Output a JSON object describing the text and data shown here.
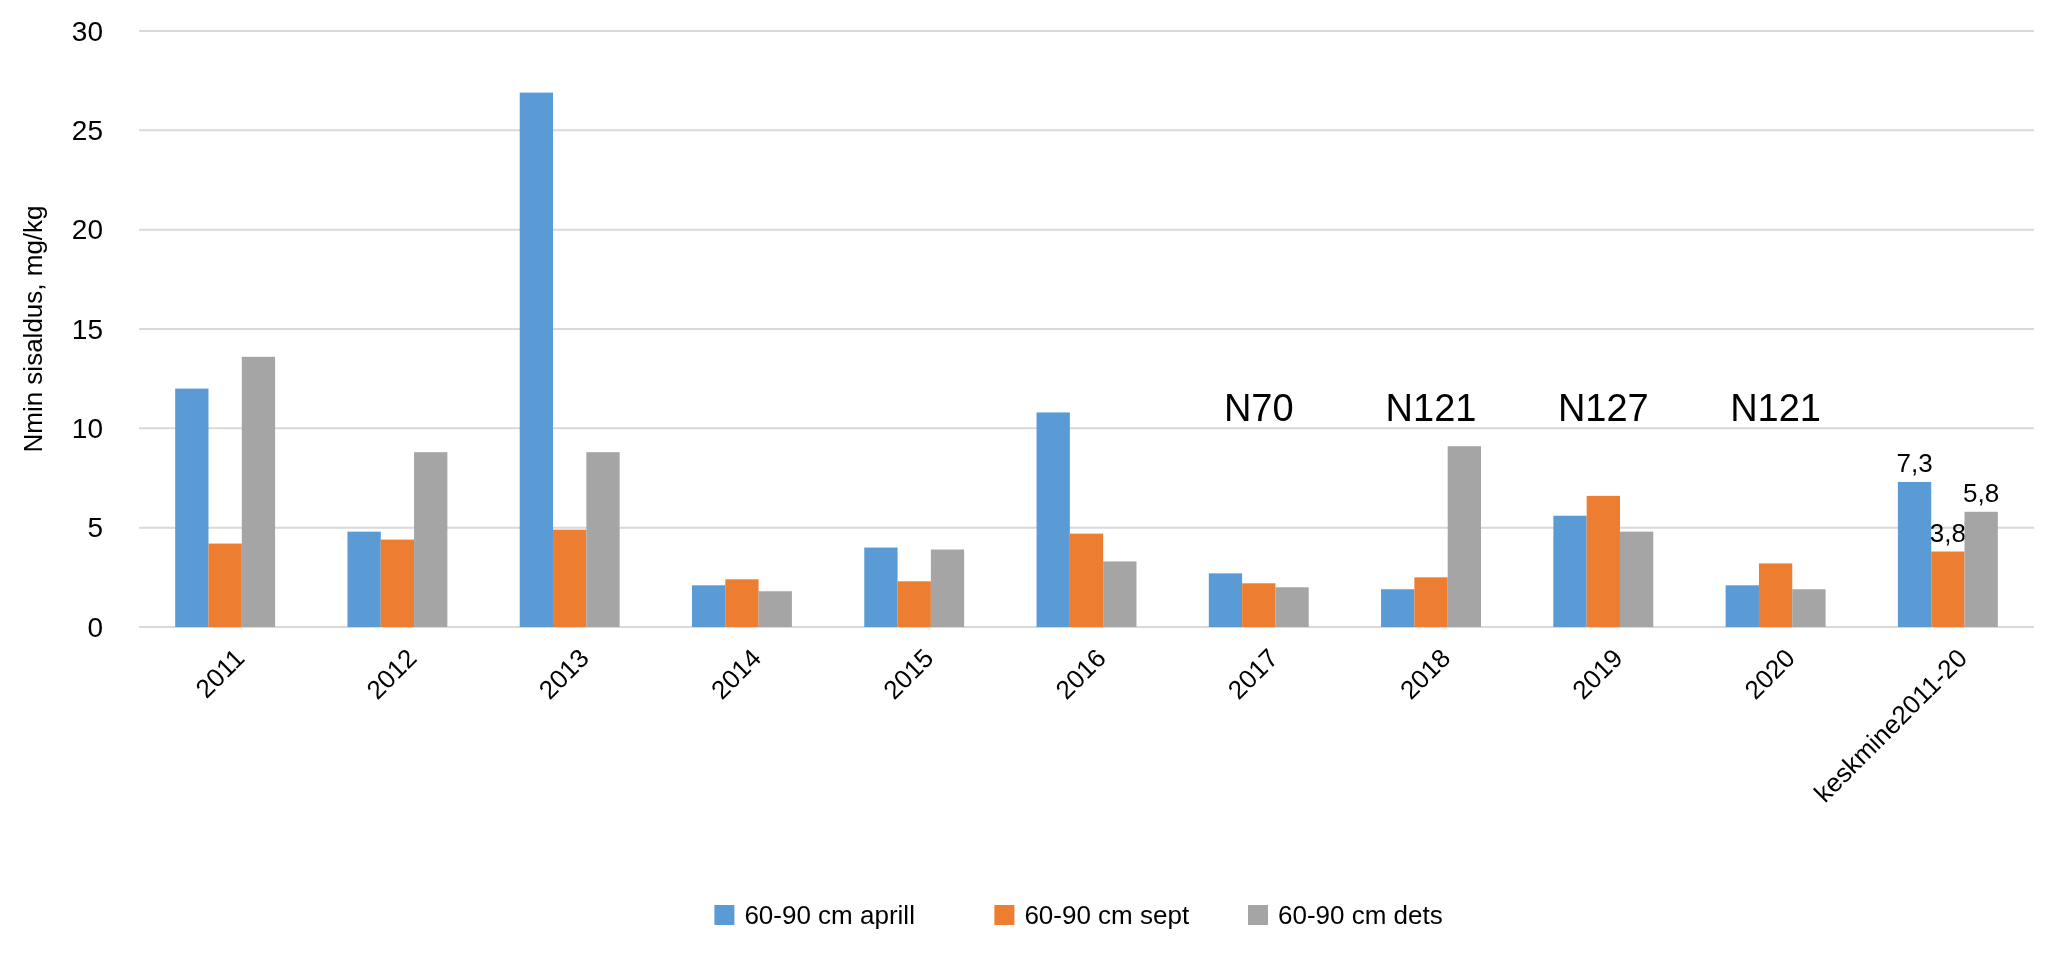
{
  "chart_data": {
    "type": "bar",
    "ylabel": "Nmin sisaldus, mg/kg",
    "categories": [
      "2011",
      "2012",
      "2013",
      "2014",
      "2015",
      "2016",
      "2017",
      "2018",
      "2019",
      "2020",
      "keskmine2011-20"
    ],
    "series": [
      {
        "name": "60-90 cm aprill",
        "color": "#5b9bd5",
        "values": [
          12.0,
          4.8,
          26.9,
          2.1,
          4.0,
          10.8,
          2.7,
          1.9,
          5.6,
          2.1,
          7.3
        ],
        "value_labels": [
          null,
          null,
          null,
          null,
          null,
          null,
          null,
          null,
          null,
          null,
          "7,3"
        ]
      },
      {
        "name": "60-90 cm sept",
        "color": "#ed7d31",
        "values": [
          4.2,
          4.4,
          4.9,
          2.4,
          2.3,
          4.7,
          2.2,
          2.5,
          6.6,
          3.2,
          3.8
        ],
        "value_labels": [
          null,
          null,
          null,
          null,
          null,
          null,
          null,
          null,
          null,
          null,
          "3,8"
        ]
      },
      {
        "name": "60-90 cm dets",
        "color": "#a5a5a5",
        "values": [
          13.6,
          8.8,
          8.8,
          1.8,
          3.9,
          3.3,
          2.0,
          9.1,
          4.8,
          1.9,
          5.8
        ],
        "value_labels": [
          null,
          null,
          null,
          null,
          null,
          null,
          null,
          null,
          null,
          null,
          "5,8"
        ]
      }
    ],
    "annotations": [
      "N70",
      "N121",
      "N127",
      "N121"
    ],
    "ylim": [
      0,
      30
    ],
    "yticks": [
      0,
      5,
      10,
      15,
      20,
      25,
      30
    ],
    "grid": "y",
    "legend": "bottom"
  }
}
